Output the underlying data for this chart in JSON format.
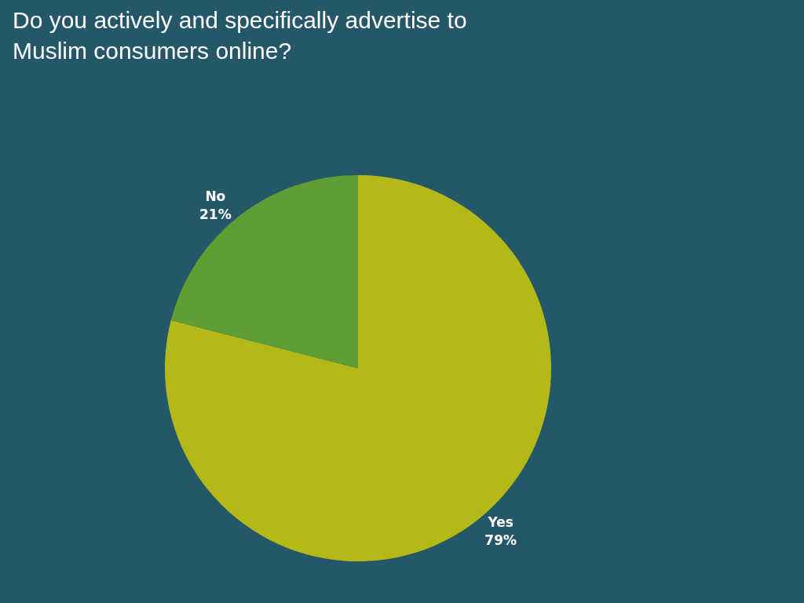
{
  "chart_data": {
    "type": "pie",
    "title": "Do you actively and specifically advertise to Muslim consumers online?",
    "categories": [
      "Yes",
      "No"
    ],
    "values": [
      79,
      21
    ],
    "value_labels": [
      "79%",
      "21%"
    ],
    "colors": [
      "#b2b918",
      "#5f9d35"
    ],
    "legend": false
  }
}
